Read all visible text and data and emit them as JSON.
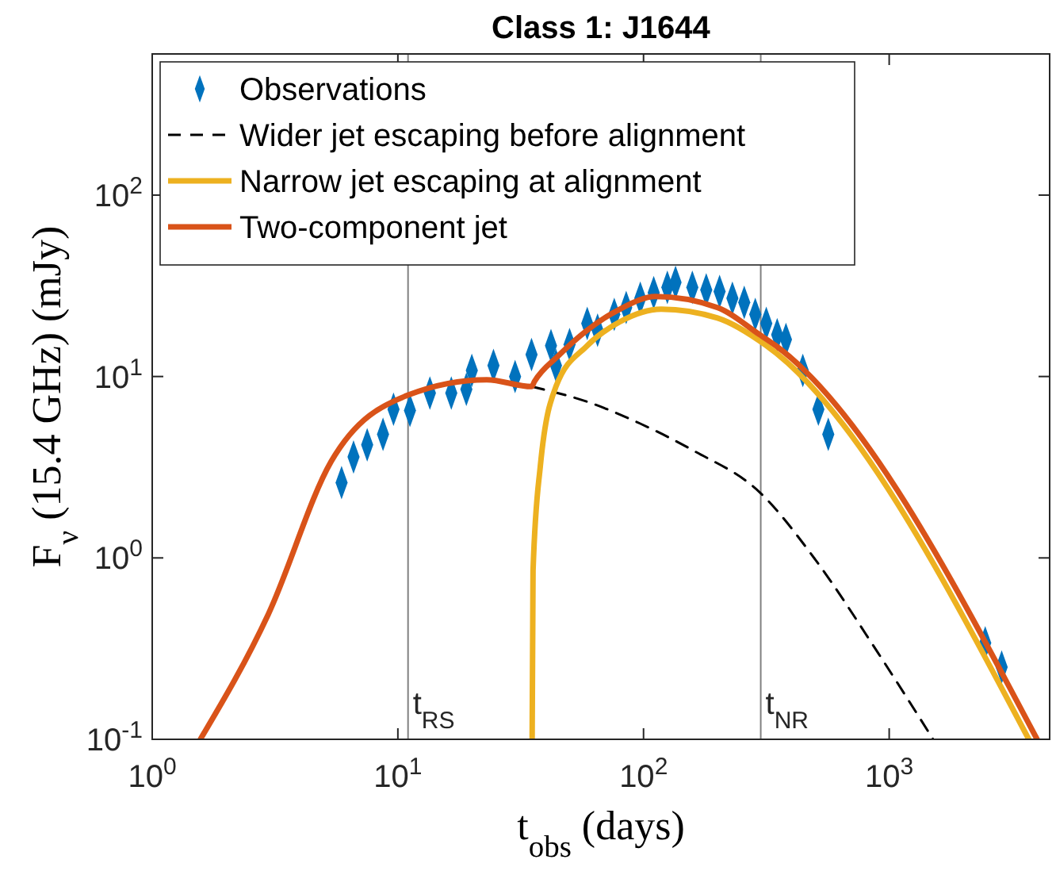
{
  "chart_data": {
    "type": "line",
    "title": "Class 1: J1644",
    "xlabel": "t$_{obs}$ (days)",
    "ylabel": "F$_{ν}$ (15.4 GHz) (mJy)",
    "log": "xy",
    "legend": "top left",
    "xlim": [
      1,
      4500
    ],
    "ylim": [
      0.1,
      600
    ],
    "xticks": [
      {
        "value": 1,
        "label": "10$^{0}$"
      },
      {
        "value": 10,
        "label": "10$^{1}$"
      },
      {
        "value": 100,
        "label": "10$^{2}$"
      },
      {
        "value": 1000,
        "label": "10$^{3}$"
      }
    ],
    "yticks": [
      {
        "value": 0.1,
        "label": "10$^{-1}$"
      },
      {
        "value": 1,
        "label": "10$^{0}$"
      },
      {
        "value": 10,
        "label": "10$^{1}$"
      },
      {
        "value": 100,
        "label": "10$^{2}$"
      }
    ],
    "ref_lines": [
      {
        "axis": "x",
        "value": 11,
        "label": "t$_{RS}$",
        "color": "#808080"
      },
      {
        "axis": "x",
        "value": 300,
        "label": "t$_{NR}$",
        "color": "#808080"
      }
    ],
    "series": [
      {
        "name": "Observations",
        "type": "scatter",
        "marker": "diamond",
        "color": "#0072bd",
        "x": [
          5.9,
          6.6,
          7.5,
          8.7,
          9.6,
          11.2,
          13.5,
          16.5,
          19,
          20,
          24.5,
          30,
          35,
          42,
          44,
          50,
          59,
          65,
          76,
          85,
          97,
          110,
          125,
          135,
          158,
          180,
          204,
          230,
          257,
          285,
          316,
          350,
          380,
          445,
          515,
          565,
          2460,
          2870
        ],
        "values": [
          2.6,
          3.6,
          4.2,
          4.8,
          6.6,
          6.5,
          8.1,
          8.1,
          8.5,
          10.8,
          11.5,
          10,
          13.2,
          14.8,
          11.5,
          15,
          19.6,
          18,
          22,
          24,
          27,
          29,
          31,
          33,
          31,
          30,
          29.4,
          27,
          25.6,
          22,
          19.6,
          17,
          16,
          10.8,
          6.6,
          4.8,
          0.34,
          0.25
        ]
      },
      {
        "name": "Wider jet escaping before alignment",
        "color": "#000000",
        "line_style": "dashed",
        "x": [
          35,
          60,
          97,
          160,
          297,
          500,
          900,
          1510
        ],
        "values": [
          8.8,
          7.2,
          5.5,
          3.9,
          2.3,
          0.98,
          0.3,
          0.1
        ]
      },
      {
        "name": "Narrow jet escaping at alignment",
        "color": "#edb120",
        "x": [
          35.2,
          35.5,
          38,
          44,
          59,
          80,
          118,
          200,
          316,
          3700
        ],
        "values": [
          0.1,
          0.85,
          3.2,
          8.8,
          14.8,
          20,
          23.5,
          21,
          14.8,
          0.1
        ]
      },
      {
        "name": "Two-component jet",
        "color": "#d95319",
        "x": [
          1.57,
          2.97,
          5.35,
          11,
          23,
          35,
          36,
          45,
          59,
          80,
          112,
          200,
          297,
          345,
          4000
        ],
        "values": [
          0.1,
          0.49,
          3.4,
          7.9,
          9.6,
          8.8,
          9.4,
          13,
          18,
          23.5,
          27.6,
          24,
          17,
          14.8,
          0.1
        ]
      }
    ]
  }
}
